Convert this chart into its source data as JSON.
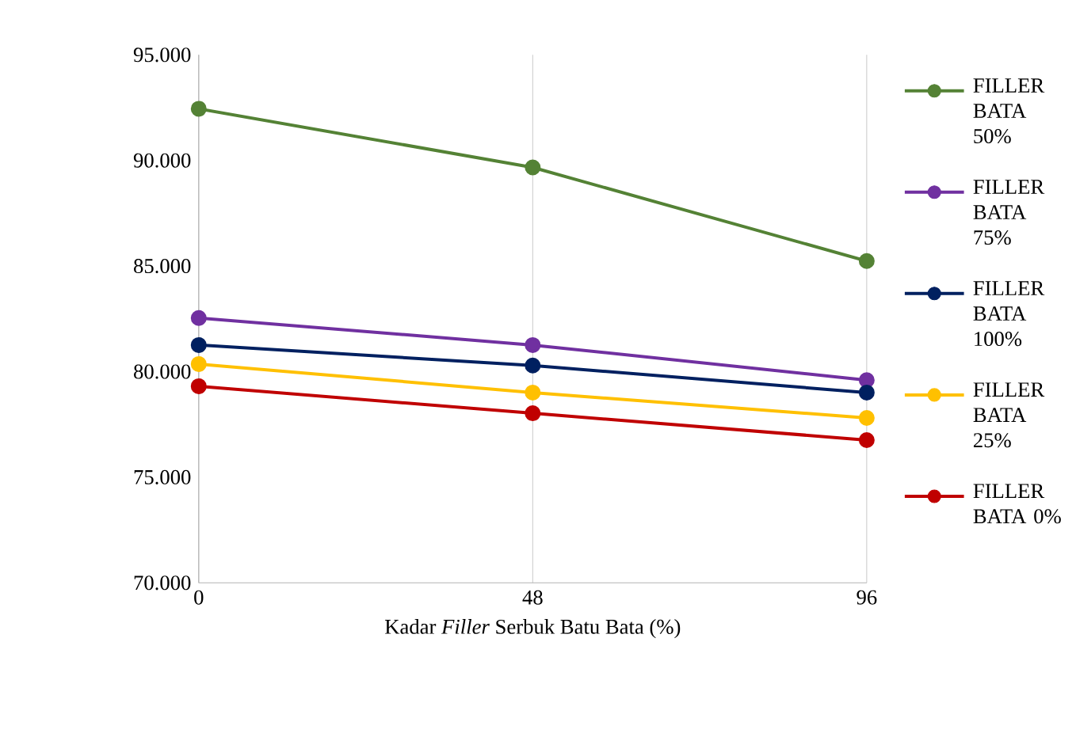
{
  "chart_data": {
    "type": "line",
    "xlabel": "Kadar *Filler* Serbuk Batu Bata (%)",
    "x": [
      0,
      48,
      96
    ],
    "xlim": [
      0,
      96
    ],
    "xticks": [
      0,
      48,
      96
    ],
    "ylim": [
      70000,
      95000
    ],
    "yticks": [
      {
        "value": 70000,
        "label": "70.000"
      },
      {
        "value": 75000,
        "label": "75.000"
      },
      {
        "value": 80000,
        "label": "80.000"
      },
      {
        "value": 85000,
        "label": "85.000"
      },
      {
        "value": 90000,
        "label": "90.000"
      },
      {
        "value": 95000,
        "label": "95.000"
      }
    ],
    "grid": "x",
    "legend": "right",
    "marker": "circle",
    "line_style": "solid",
    "series": [
      {
        "name": "FILLER BATA 50%",
        "color": "#548235",
        "values": [
          92450,
          89670,
          85240
        ]
      },
      {
        "name": "FILLER BATA 75%",
        "color": "#7030a0",
        "values": [
          82540,
          81260,
          79600
        ]
      },
      {
        "name": "FILLER BATA 100%",
        "color": "#002060",
        "values": [
          81260,
          80290,
          79010
        ]
      },
      {
        "name": "FILLER BATA 25%",
        "color": "#ffc000",
        "values": [
          80360,
          79010,
          77810
        ]
      },
      {
        "name": "FILLER BATA 0%",
        "color": "#c00000",
        "values": [
          79310,
          78030,
          76760
        ]
      }
    ]
  }
}
